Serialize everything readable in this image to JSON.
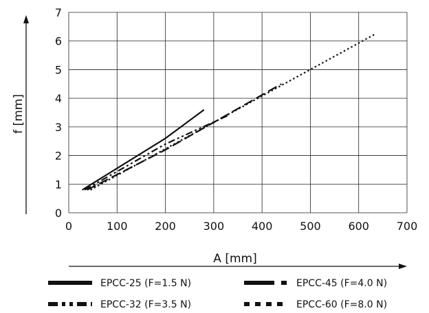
{
  "chart_data": {
    "type": "line",
    "xlabel": "A [mm]",
    "ylabel": "f [mm]",
    "xlim": [
      0,
      700
    ],
    "ylim": [
      0,
      7
    ],
    "x_ticks": [
      0,
      100,
      200,
      300,
      400,
      500,
      600,
      700
    ],
    "y_ticks": [
      0,
      1,
      2,
      3,
      4,
      5,
      6,
      7
    ],
    "grid": true,
    "legend_position": "bottom",
    "series": [
      {
        "name": "EPCC-25 (F=1.5 N)",
        "style": "solid",
        "x": [
          28,
          200,
          280
        ],
        "y": [
          0.8,
          2.6,
          3.6
        ]
      },
      {
        "name": "EPCC-32 (F=3.5 N)",
        "style": "dash-dot-dot",
        "x": [
          33,
          200,
          330
        ],
        "y": [
          0.8,
          2.4,
          3.4
        ]
      },
      {
        "name": "EPCC-45 (F=4.0 N)",
        "style": "long-dash",
        "x": [
          38,
          200,
          440
        ],
        "y": [
          0.8,
          2.2,
          4.5
        ]
      },
      {
        "name": "EPCC-60 (F=8.0 N)",
        "style": "dotted",
        "x": [
          45,
          635
        ],
        "y": [
          0.8,
          6.25
        ]
      }
    ]
  }
}
